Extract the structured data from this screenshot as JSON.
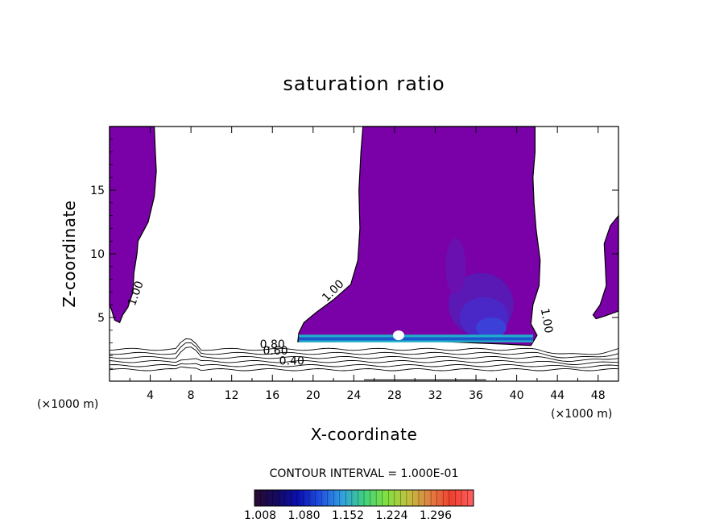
{
  "chart_data": {
    "type": "contour",
    "title": "saturation ratio",
    "xlabel": "X-coordinate",
    "ylabel": "Z-coordinate",
    "x_unit_left": "(×1000 m)",
    "x_unit_right": "(×1000 m)",
    "xlim": [
      0,
      50
    ],
    "ylim": [
      0,
      20
    ],
    "x_ticks": [
      4,
      8,
      12,
      16,
      20,
      24,
      28,
      32,
      36,
      40,
      44,
      48
    ],
    "x_tick_labels": [
      "4",
      "8",
      "12",
      "16",
      "20",
      "24",
      "28",
      "32",
      "36",
      "40",
      "44",
      "48"
    ],
    "y_ticks": [
      5,
      10,
      15
    ],
    "y_tick_labels": [
      "5",
      "10",
      "15"
    ],
    "contour_interval_text": "CONTOUR INTERVAL = 1.000E-01",
    "contour_labels": [
      "1.00",
      "1.00",
      "1.00",
      "0.80",
      "0.60",
      "0.40"
    ],
    "colorbar": {
      "tick_labels": [
        "1.008",
        "1.080",
        "1.152",
        "1.224",
        "1.296"
      ],
      "colors": [
        "#2a0a30",
        "#140a60",
        "#0a10b0",
        "#2050e0",
        "#30a0e0",
        "#40d080",
        "#80e040",
        "#c0c040",
        "#e08040",
        "#f04030",
        "#ff6060"
      ]
    },
    "fill_color": "#7a00a8",
    "supersaturated_regions": [
      {
        "x": [
          0,
          5
        ],
        "z": [
          4.5,
          20
        ]
      },
      {
        "x": [
          18.5,
          42
        ],
        "z": [
          3,
          20
        ]
      },
      {
        "x": [
          47,
          50
        ],
        "z": [
          5,
          13
        ]
      }
    ],
    "isolines_near_surface": [
      0.4,
      0.5,
      0.6,
      0.7,
      0.8,
      0.9
    ]
  }
}
